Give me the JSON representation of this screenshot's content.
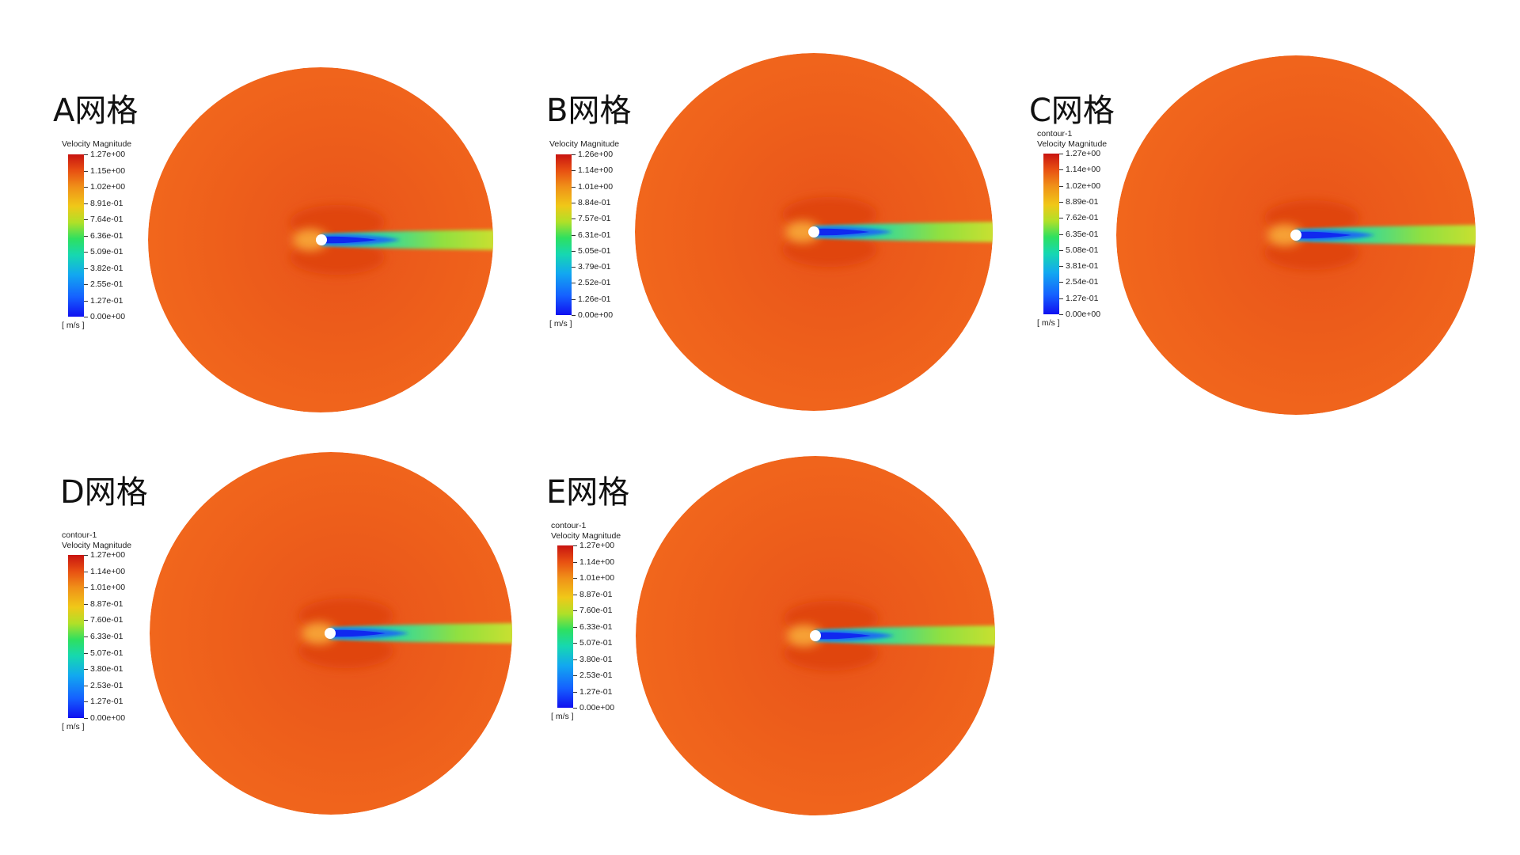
{
  "panels": [
    {
      "title": "A网格",
      "legend": {
        "contour_name": "",
        "variable": "Velocity Magnitude",
        "unit": "[ m/s ]",
        "ticks": [
          "1.27e+00",
          "1.15e+00",
          "1.02e+00",
          "8.91e-01",
          "7.64e-01",
          "6.36e-01",
          "5.09e-01",
          "3.82e-01",
          "2.55e-01",
          "1.27e-01",
          "0.00e+00"
        ]
      }
    },
    {
      "title": "B网格",
      "legend": {
        "contour_name": "",
        "variable": "Velocity Magnitude",
        "unit": "[ m/s ]",
        "ticks": [
          "1.26e+00",
          "1.14e+00",
          "1.01e+00",
          "8.84e-01",
          "7.57e-01",
          "6.31e-01",
          "5.05e-01",
          "3.79e-01",
          "2.52e-01",
          "1.26e-01",
          "0.00e+00"
        ]
      }
    },
    {
      "title": "C网格",
      "legend": {
        "contour_name": "contour-1",
        "variable": "Velocity Magnitude",
        "unit": "[ m/s ]",
        "ticks": [
          "1.27e+00",
          "1.14e+00",
          "1.02e+00",
          "8.89e-01",
          "7.62e-01",
          "6.35e-01",
          "5.08e-01",
          "3.81e-01",
          "2.54e-01",
          "1.27e-01",
          "0.00e+00"
        ]
      }
    },
    {
      "title": "D网格",
      "legend": {
        "contour_name": "contour-1",
        "variable": "Velocity Magnitude",
        "unit": "[ m/s ]",
        "ticks": [
          "1.27e+00",
          "1.14e+00",
          "1.01e+00",
          "8.87e-01",
          "7.60e-01",
          "6.33e-01",
          "5.07e-01",
          "3.80e-01",
          "2.53e-01",
          "1.27e-01",
          "0.00e+00"
        ]
      }
    },
    {
      "title": "E网格",
      "legend": {
        "contour_name": "contour-1",
        "variable": "Velocity Magnitude",
        "unit": "[ m/s ]",
        "ticks": [
          "1.27e+00",
          "1.14e+00",
          "1.01e+00",
          "8.87e-01",
          "7.60e-01",
          "6.33e-01",
          "5.07e-01",
          "3.80e-01",
          "2.53e-01",
          "1.27e-01",
          "0.00e+00"
        ]
      }
    }
  ],
  "colors": {
    "freestream": "#f2681c",
    "accelerated": "#e04410",
    "wake_core": "#1028f0",
    "wake_mid": "#1ad0d0",
    "wake_outer": "#c8e030",
    "cylinder": "#ffffff"
  }
}
